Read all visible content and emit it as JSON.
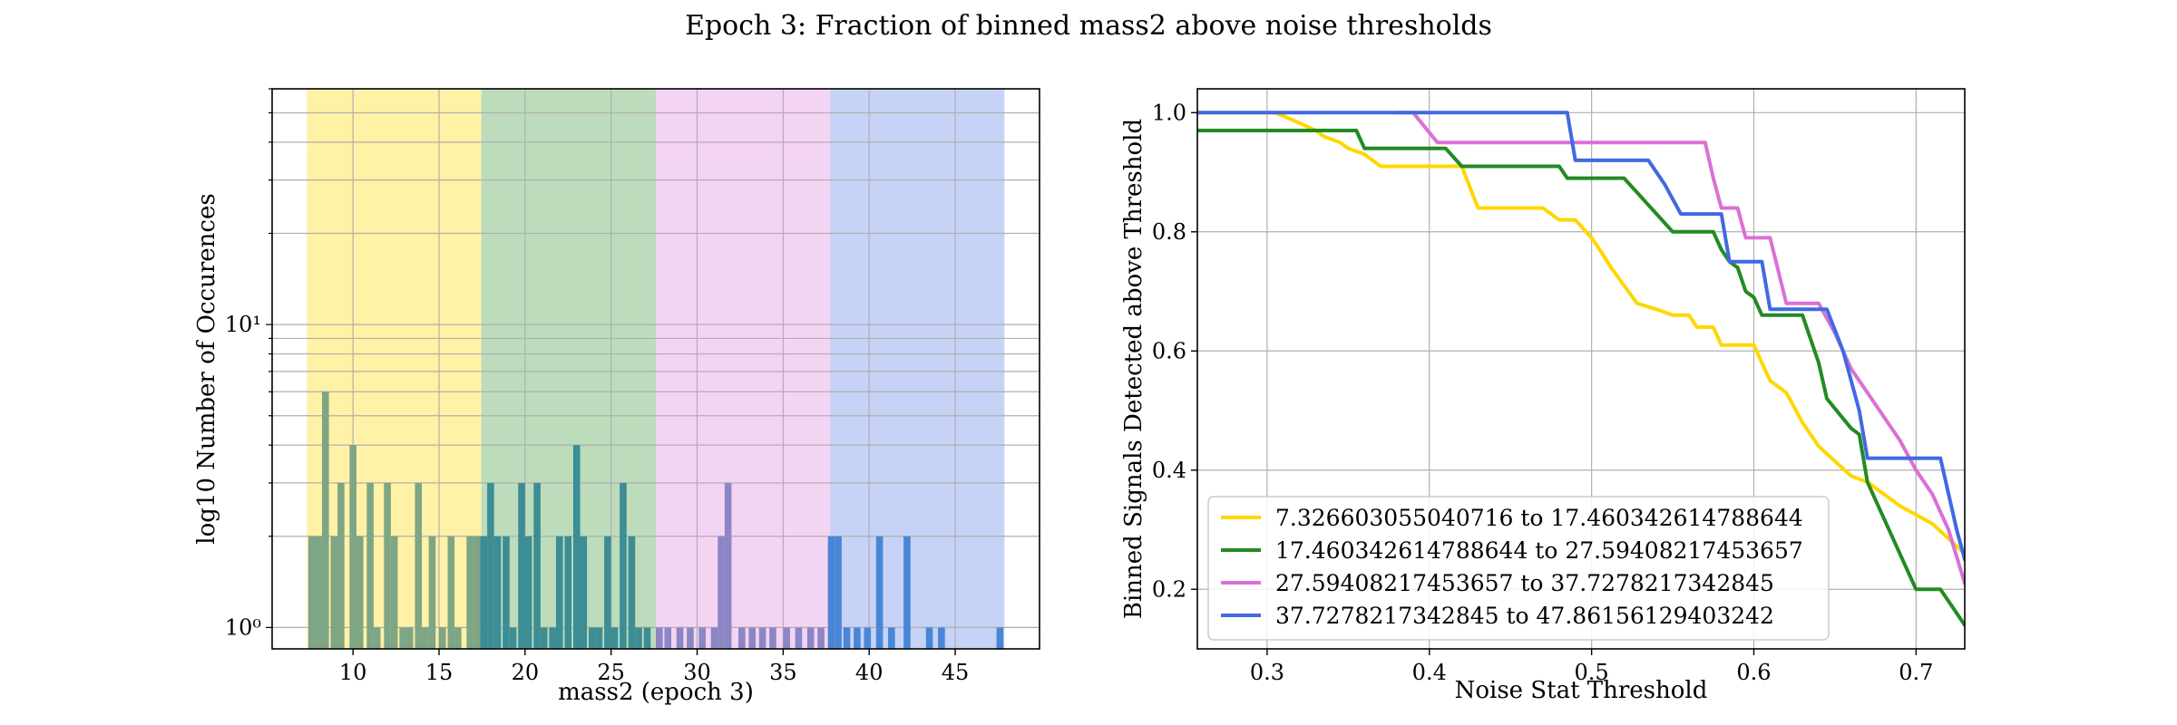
{
  "figure": {
    "title": "Epoch 3: Fraction of binned mass2 above noise thresholds"
  },
  "chart_data": [
    {
      "type": "bar",
      "subtype": "histogram",
      "xlabel": "mass2 (epoch 3)",
      "ylabel": "log10 Number of Occurences",
      "xlim": [
        5.3,
        49.9
      ],
      "ylim": [
        0.85,
        60
      ],
      "yscale": "log",
      "grid": true,
      "x_ticks": [
        10,
        15,
        20,
        25,
        30,
        35,
        40,
        45
      ],
      "y_ticks": [
        {
          "value": 1,
          "label": "10⁰"
        },
        {
          "value": 10,
          "label": "10¹"
        }
      ],
      "bins": [
        {
          "x0": 7.3266,
          "x1": 17.4603,
          "color": "#ffd700",
          "opacity": 0.35
        },
        {
          "x0": 17.4603,
          "x1": 27.5941,
          "color": "#228b22",
          "opacity": 0.3
        },
        {
          "x0": 27.5941,
          "x1": 37.7278,
          "color": "#da70d6",
          "opacity": 0.3
        },
        {
          "x0": 37.7278,
          "x1": 47.8616,
          "color": "#4169e1",
          "opacity": 0.3
        }
      ],
      "bar_width": 0.4,
      "histogram_series": [
        {
          "color": "#7ea584",
          "x": [
            7.6,
            8.0,
            8.4,
            8.9,
            9.3,
            10.0,
            10.4,
            11.0,
            11.4,
            12.0,
            12.4,
            12.9,
            13.3,
            13.8,
            14.2,
            14.6,
            15.2,
            15.7,
            16.1,
            16.8,
            17.2
          ],
          "values": [
            2,
            2,
            6,
            2,
            3,
            4,
            2,
            3,
            1,
            3,
            2,
            1,
            1,
            3,
            1,
            2,
            1,
            2,
            1,
            2,
            2
          ]
        },
        {
          "color": "#3c8d94",
          "x": [
            17.6,
            18.0,
            18.4,
            18.9,
            19.3,
            19.8,
            20.2,
            20.7,
            21.1,
            21.6,
            22.0,
            22.5,
            23.0,
            23.4,
            23.9,
            24.3,
            24.8,
            25.2,
            25.7,
            26.2,
            26.6,
            27.1
          ],
          "values": [
            2,
            3,
            2,
            2,
            1,
            3,
            2,
            3,
            1,
            1,
            2,
            2,
            4,
            2,
            1,
            1,
            2,
            1,
            3,
            2,
            1,
            1
          ]
        },
        {
          "color": "#8b87c6",
          "x": [
            27.8,
            28.3,
            29.0,
            29.6,
            30.3,
            31.0,
            31.4,
            31.8,
            32.6,
            33.2,
            33.8,
            34.4,
            35.2,
            35.9,
            36.6,
            37.2
          ],
          "values": [
            1,
            1,
            1,
            1,
            1,
            1,
            2,
            3,
            1,
            1,
            1,
            1,
            1,
            1,
            1,
            1
          ]
        },
        {
          "color": "#4a86d6",
          "x": [
            37.8,
            38.2,
            38.7,
            39.3,
            39.9,
            40.6,
            41.3,
            42.2,
            43.5,
            44.2,
            47.6
          ],
          "values": [
            2,
            2,
            1,
            1,
            1,
            2,
            1,
            2,
            1,
            1,
            1
          ]
        }
      ]
    },
    {
      "type": "line",
      "xlabel": "Noise Stat Threshold",
      "ylabel": "Binned Signals Detected above Threshold",
      "xlim": [
        0.257,
        0.73
      ],
      "ylim": [
        0.1,
        1.04
      ],
      "grid": true,
      "legend_position": "lower-left",
      "x_ticks": [
        0.3,
        0.4,
        0.5,
        0.6,
        0.7
      ],
      "y_ticks": [
        0.2,
        0.4,
        0.6,
        0.8,
        1.0
      ],
      "series": [
        {
          "name": "7.326603055040716 to 17.460342614788644",
          "color": "#ffd700",
          "points": [
            [
              0.257,
              1.0
            ],
            [
              0.305,
              1.0
            ],
            [
              0.318,
              0.985
            ],
            [
              0.33,
              0.97
            ],
            [
              0.335,
              0.96
            ],
            [
              0.345,
              0.95
            ],
            [
              0.35,
              0.94
            ],
            [
              0.36,
              0.93
            ],
            [
              0.365,
              0.92
            ],
            [
              0.37,
              0.91
            ],
            [
              0.42,
              0.91
            ],
            [
              0.43,
              0.84
            ],
            [
              0.47,
              0.84
            ],
            [
              0.48,
              0.82
            ],
            [
              0.49,
              0.82
            ],
            [
              0.5,
              0.79
            ],
            [
              0.505,
              0.77
            ],
            [
              0.512,
              0.74
            ],
            [
              0.52,
              0.71
            ],
            [
              0.528,
              0.68
            ],
            [
              0.54,
              0.67
            ],
            [
              0.55,
              0.66
            ],
            [
              0.56,
              0.66
            ],
            [
              0.565,
              0.64
            ],
            [
              0.575,
              0.64
            ],
            [
              0.58,
              0.61
            ],
            [
              0.6,
              0.61
            ],
            [
              0.61,
              0.55
            ],
            [
              0.62,
              0.53
            ],
            [
              0.63,
              0.48
            ],
            [
              0.64,
              0.44
            ],
            [
              0.66,
              0.39
            ],
            [
              0.67,
              0.38
            ],
            [
              0.69,
              0.34
            ],
            [
              0.71,
              0.31
            ],
            [
              0.73,
              0.26
            ]
          ]
        },
        {
          "name": "17.460342614788644 to 27.59408217453657",
          "color": "#228b22",
          "points": [
            [
              0.257,
              0.97
            ],
            [
              0.355,
              0.97
            ],
            [
              0.36,
              0.94
            ],
            [
              0.41,
              0.94
            ],
            [
              0.42,
              0.91
            ],
            [
              0.48,
              0.91
            ],
            [
              0.485,
              0.89
            ],
            [
              0.52,
              0.89
            ],
            [
              0.53,
              0.86
            ],
            [
              0.55,
              0.8
            ],
            [
              0.575,
              0.8
            ],
            [
              0.58,
              0.77
            ],
            [
              0.585,
              0.75
            ],
            [
              0.59,
              0.74
            ],
            [
              0.595,
              0.7
            ],
            [
              0.6,
              0.69
            ],
            [
              0.605,
              0.66
            ],
            [
              0.63,
              0.66
            ],
            [
              0.64,
              0.58
            ],
            [
              0.645,
              0.52
            ],
            [
              0.66,
              0.47
            ],
            [
              0.665,
              0.46
            ],
            [
              0.67,
              0.38
            ],
            [
              0.7,
              0.2
            ],
            [
              0.715,
              0.2
            ],
            [
              0.73,
              0.14
            ]
          ]
        },
        {
          "name": "27.59408217453657 to 37.7278217342845",
          "color": "#da70d6",
          "points": [
            [
              0.38,
              1.0
            ],
            [
              0.39,
              1.0
            ],
            [
              0.405,
              0.95
            ],
            [
              0.57,
              0.95
            ],
            [
              0.575,
              0.89
            ],
            [
              0.58,
              0.84
            ],
            [
              0.59,
              0.84
            ],
            [
              0.595,
              0.79
            ],
            [
              0.61,
              0.79
            ],
            [
              0.62,
              0.68
            ],
            [
              0.64,
              0.68
            ],
            [
              0.65,
              0.63
            ],
            [
              0.66,
              0.57
            ],
            [
              0.67,
              0.53
            ],
            [
              0.68,
              0.49
            ],
            [
              0.69,
              0.45
            ],
            [
              0.7,
              0.4
            ],
            [
              0.71,
              0.36
            ],
            [
              0.72,
              0.3
            ],
            [
              0.73,
              0.21
            ]
          ]
        },
        {
          "name": "37.7278217342845 to 47.86156129403242",
          "color": "#4169e1",
          "points": [
            [
              0.257,
              1.0
            ],
            [
              0.485,
              1.0
            ],
            [
              0.49,
              0.92
            ],
            [
              0.535,
              0.92
            ],
            [
              0.545,
              0.88
            ],
            [
              0.555,
              0.83
            ],
            [
              0.58,
              0.83
            ],
            [
              0.585,
              0.75
            ],
            [
              0.605,
              0.75
            ],
            [
              0.61,
              0.67
            ],
            [
              0.645,
              0.67
            ],
            [
              0.655,
              0.6
            ],
            [
              0.665,
              0.5
            ],
            [
              0.67,
              0.42
            ],
            [
              0.715,
              0.42
            ],
            [
              0.725,
              0.3
            ],
            [
              0.73,
              0.25
            ]
          ]
        }
      ]
    }
  ]
}
